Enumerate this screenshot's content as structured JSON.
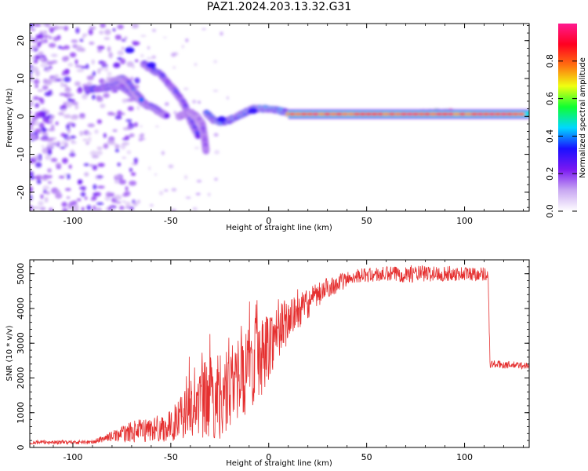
{
  "title": "PAZ1.2024.203.13.32.G31",
  "colors": {
    "snr_line": "#e53030",
    "colormap": [
      "#ffffff",
      "#c9a8f2",
      "#7a18f2",
      "#1a10ff",
      "#00d8ff",
      "#10ff30",
      "#f0ff10",
      "#ff7010",
      "#ff0020",
      "#ff1a90"
    ]
  },
  "chart_data": [
    {
      "type": "heatmap",
      "name": "spectrogram",
      "xlabel": "Height of straight line (km)",
      "ylabel": "Frequency (Hz)",
      "xlim": [
        -122,
        133
      ],
      "ylim": [
        -25,
        24.5
      ],
      "x_ticks": [
        -100,
        -50,
        0,
        50,
        100
      ],
      "y_ticks": [
        -20,
        -10,
        0,
        10,
        20
      ],
      "colorbar": {
        "label": "Normalized spectral amplitude",
        "range": [
          0,
          1
        ],
        "ticks": [
          "0.0",
          "0.2",
          "0.4",
          "0.6",
          "0.8"
        ]
      },
      "ridges": [
        {
          "points": [
            [
              -93,
              7
            ],
            [
              -85,
              7.5
            ],
            [
              -80,
              8
            ],
            [
              -75,
              8
            ],
            [
              -70,
              6
            ],
            [
              -65,
              4
            ],
            [
              -62,
              3
            ],
            [
              -58,
              2
            ],
            [
              -55,
              1
            ],
            [
              -52,
              0
            ]
          ],
          "peak": 0.35
        },
        {
          "points": [
            [
              -80,
              9
            ],
            [
              -75,
              10
            ],
            [
              -72,
              9
            ],
            [
              -68,
              6
            ],
            [
              -65,
              4.5
            ]
          ],
          "peak": 0.4
        },
        {
          "points": [
            [
              -64,
              14
            ],
            [
              -60,
              12.5
            ],
            [
              -55,
              11
            ],
            [
              -50,
              8
            ],
            [
              -47,
              6
            ],
            [
              -44,
              4
            ],
            [
              -42,
              2
            ],
            [
              -40,
              -1
            ],
            [
              -38,
              -3
            ],
            [
              -36,
              -5
            ]
          ],
          "peak": 0.35
        },
        {
          "points": [
            [
              -46,
              0
            ],
            [
              -40,
              1
            ],
            [
              -37,
              0
            ],
            [
              -34,
              -2
            ],
            [
              -33,
              -5
            ],
            [
              -32,
              -9
            ]
          ],
          "peak": 0.25
        },
        {
          "points": [
            [
              -32,
              1
            ],
            [
              -28,
              -1
            ],
            [
              -24,
              -1.5
            ],
            [
              -20,
              -1
            ],
            [
              -16,
              0
            ],
            [
              -12,
              1
            ],
            [
              -8,
              2
            ],
            [
              -4,
              2
            ],
            [
              0,
              2
            ],
            [
              5,
              1.5
            ],
            [
              10,
              1
            ]
          ],
          "peak": 0.45
        },
        {
          "points": [
            [
              10,
              0.8
            ],
            [
              30,
              0.6
            ],
            [
              50,
              0.6
            ],
            [
              70,
              0.7
            ],
            [
              85,
              1
            ],
            [
              95,
              1
            ],
            [
              102,
              0.5
            ],
            [
              110,
              0.6
            ],
            [
              133,
              0.6
            ]
          ],
          "peak": 0.92
        }
      ],
      "annotation_blobs": [
        {
          "x": -71,
          "y": 17.5
        },
        {
          "x": -60,
          "y": 13.5
        },
        {
          "x": -24,
          "y": -0.8
        },
        {
          "x": -8,
          "y": 1.5
        }
      ]
    },
    {
      "type": "line",
      "name": "snr",
      "xlabel": "Height of straight line (km)",
      "ylabel": "SNR (10 * v/v)",
      "xlim": [
        -122,
        133
      ],
      "ylim": [
        0,
        5400
      ],
      "x_ticks": [
        -100,
        -50,
        0,
        50,
        100
      ],
      "y_ticks": [
        0,
        1000,
        2000,
        3000,
        4000,
        5000
      ],
      "envelope": [
        {
          "x": -122,
          "y": 150,
          "noise": 60
        },
        {
          "x": -90,
          "y": 150,
          "noise": 60
        },
        {
          "x": -82,
          "y": 300,
          "noise": 120
        },
        {
          "x": -70,
          "y": 450,
          "noise": 300
        },
        {
          "x": -50,
          "y": 600,
          "noise": 450
        },
        {
          "x": -40,
          "y": 1200,
          "noise": 900
        },
        {
          "x": -28,
          "y": 1400,
          "noise": 1300
        },
        {
          "x": -18,
          "y": 1800,
          "noise": 1200
        },
        {
          "x": -5,
          "y": 2500,
          "noise": 1200
        },
        {
          "x": 5,
          "y": 3400,
          "noise": 800
        },
        {
          "x": 15,
          "y": 3900,
          "noise": 500
        },
        {
          "x": 30,
          "y": 4600,
          "noise": 300
        },
        {
          "x": 45,
          "y": 4950,
          "noise": 200
        },
        {
          "x": 70,
          "y": 5000,
          "noise": 250
        },
        {
          "x": 112,
          "y": 5000,
          "noise": 200
        },
        {
          "x": 113,
          "y": 2400,
          "noise": 120
        },
        {
          "x": 133,
          "y": 2350,
          "noise": 100
        }
      ]
    }
  ]
}
